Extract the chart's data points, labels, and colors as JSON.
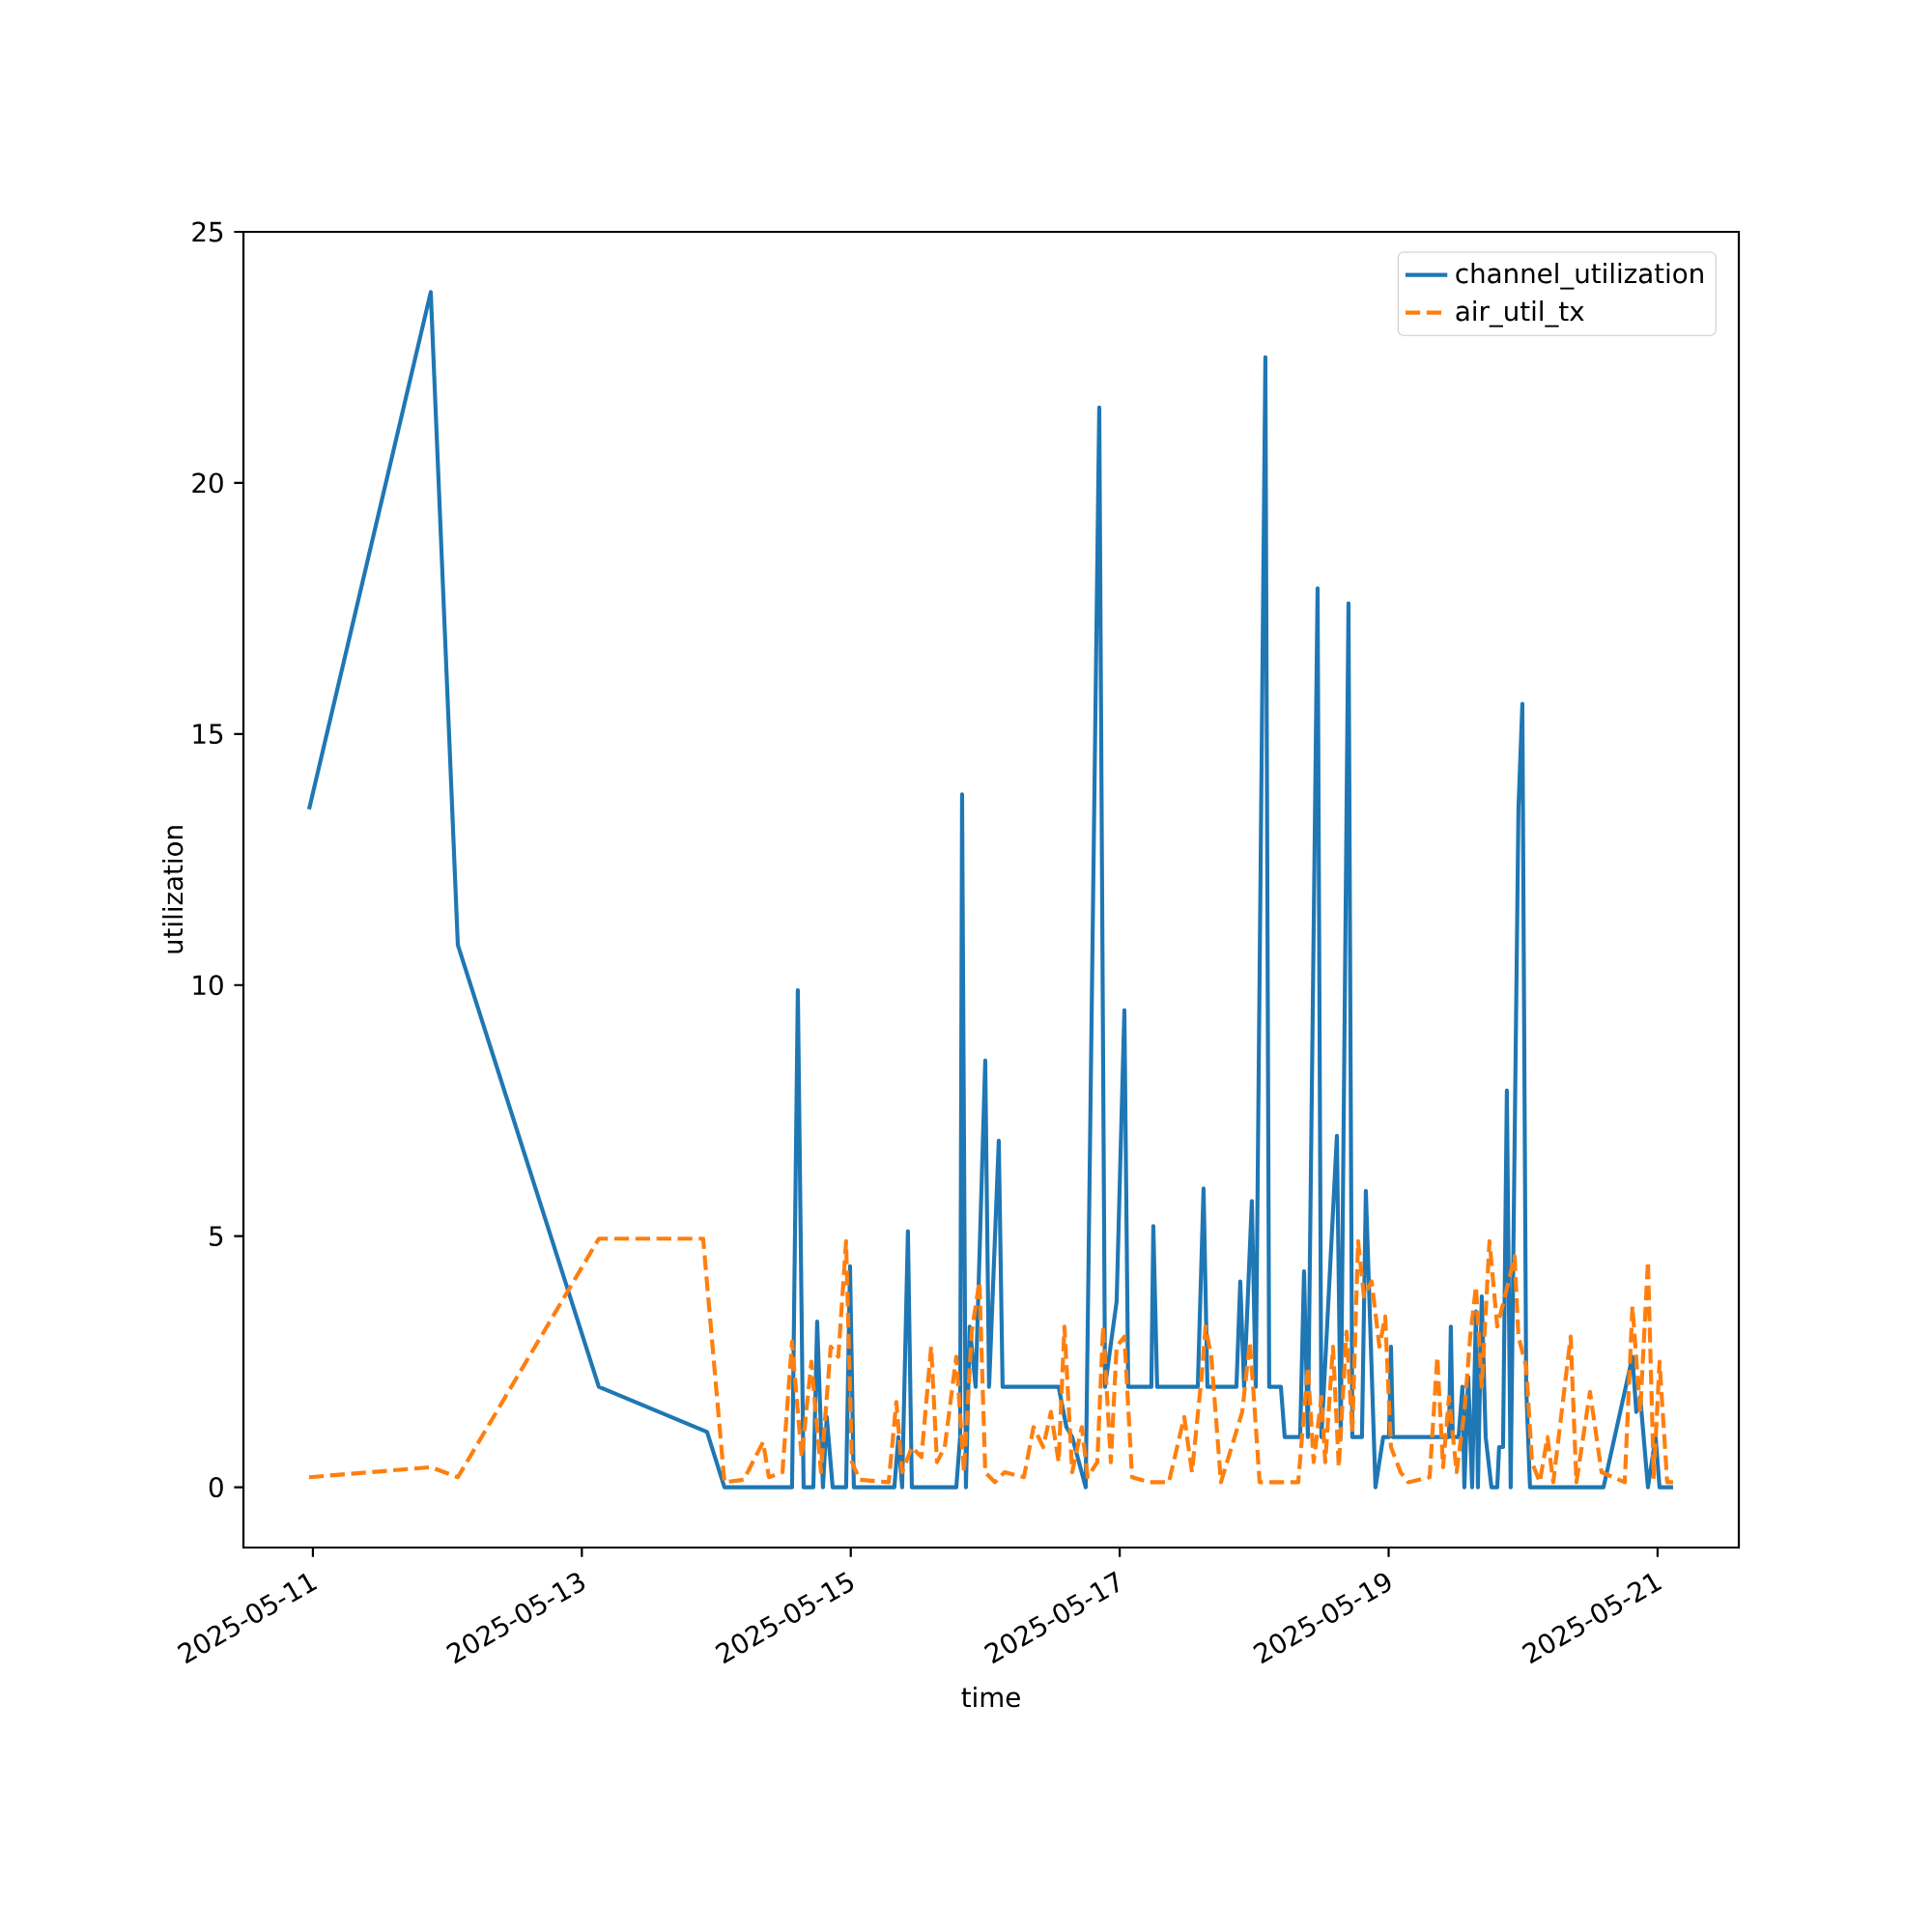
{
  "chart_data": {
    "type": "line",
    "xlabel": "time",
    "ylabel": "utilization",
    "xlim": [
      "2025-05-10T11:36",
      "2025-05-21T14:30"
    ],
    "xticks": [
      "2025-05-11",
      "2025-05-13",
      "2025-05-15",
      "2025-05-17",
      "2025-05-19",
      "2025-05-21"
    ],
    "ylim": [
      -1.2,
      25
    ],
    "yticks": [
      0,
      5,
      10,
      15,
      20,
      25
    ],
    "grid": false,
    "legend": "top right",
    "series": [
      {
        "name": "channel_utilization",
        "color": "#1f77b4",
        "line_style": "solid",
        "x": [
          "2025-05-10T23:19",
          "2025-05-11T21:02",
          "2025-05-12T01:52",
          "2025-05-13T03:02",
          "2025-05-13T22:21",
          "2025-05-14T01:27",
          "2025-05-14T13:31",
          "2025-05-14T14:33",
          "2025-05-14T15:35",
          "2025-05-14T17:19",
          "2025-05-14T18:00",
          "2025-05-14T19:02",
          "2025-05-14T19:43",
          "2025-05-14T20:46",
          "2025-05-14T23:10",
          "2025-05-14T23:52",
          "2025-05-15T00:33",
          "2025-05-15T07:47",
          "2025-05-15T08:29",
          "2025-05-15T09:10",
          "2025-05-15T10:12",
          "2025-05-15T10:54",
          "2025-05-15T18:50",
          "2025-05-15T19:31",
          "2025-05-15T19:52",
          "2025-05-15T20:33",
          "2025-05-15T21:14",
          "2025-05-15T22:17",
          "2025-05-16T00:00",
          "2025-05-16T00:41",
          "2025-05-16T02:25",
          "2025-05-16T03:06",
          "2025-05-16T13:06",
          "2025-05-16T14:29",
          "2025-05-16T15:31",
          "2025-05-16T17:56",
          "2025-05-16T20:21",
          "2025-05-16T21:23",
          "2025-05-16T23:27",
          "2025-05-17T00:50",
          "2025-05-17T01:31",
          "2025-05-17T05:39",
          "2025-05-17T06:00",
          "2025-05-17T06:41",
          "2025-05-17T13:56",
          "2025-05-17T14:58",
          "2025-05-17T15:39",
          "2025-05-17T20:50",
          "2025-05-17T21:31",
          "2025-05-17T22:12",
          "2025-05-17T23:35",
          "2025-05-18T00:17",
          "2025-05-18T02:00",
          "2025-05-18T02:41",
          "2025-05-18T04:46",
          "2025-05-18T05:27",
          "2025-05-18T08:12",
          "2025-05-18T08:54",
          "2025-05-18T09:35",
          "2025-05-18T11:19",
          "2025-05-18T12:00",
          "2025-05-18T14:46",
          "2025-05-18T15:27",
          "2025-05-18T16:50",
          "2025-05-18T17:31",
          "2025-05-18T19:14",
          "2025-05-18T19:56",
          "2025-05-18T21:39",
          "2025-05-18T23:02",
          "2025-05-19T00:04",
          "2025-05-19T00:25",
          "2025-05-19T00:46",
          "2025-05-19T10:46",
          "2025-05-19T11:06",
          "2025-05-19T11:27",
          "2025-05-19T12:29",
          "2025-05-19T13:10",
          "2025-05-19T13:31",
          "2025-05-19T14:12",
          "2025-05-19T14:54",
          "2025-05-19T15:35",
          "2025-05-19T15:56",
          "2025-05-19T16:37",
          "2025-05-19T17:19",
          "2025-05-19T18:21",
          "2025-05-19T19:23",
          "2025-05-19T19:43",
          "2025-05-19T20:25",
          "2025-05-19T21:06",
          "2025-05-19T21:47",
          "2025-05-19T23:10",
          "2025-05-19T23:52",
          "2025-05-20T00:33",
          "2025-05-20T01:14",
          "2025-05-20T14:21",
          "2025-05-20T19:31",
          "2025-05-20T20:12",
          "2025-05-20T20:54",
          "2025-05-20T22:17",
          "2025-05-20T23:39",
          "2025-05-21T00:21",
          "2025-05-21T02:46"
        ],
        "values": [
          13.5,
          23.8,
          10.8,
          2.0,
          1.1,
          0,
          0,
          9.9,
          0,
          0,
          3.3,
          0,
          1.4,
          0,
          0,
          4.4,
          0,
          0,
          1.0,
          0,
          5.1,
          0,
          0,
          1.0,
          13.8,
          0,
          3.2,
          2.0,
          8.5,
          2.0,
          6.9,
          2.0,
          2.0,
          1.2,
          1.0,
          0,
          21.5,
          2.0,
          3.7,
          9.5,
          2.0,
          2.0,
          5.2,
          2.0,
          2.0,
          5.95,
          2.0,
          2.0,
          4.1,
          2.0,
          5.7,
          2.0,
          22.5,
          2.0,
          2.0,
          1.0,
          1.0,
          4.3,
          1.0,
          17.9,
          1.0,
          7.0,
          1.0,
          17.6,
          1.0,
          1.0,
          5.9,
          0,
          1.0,
          1.0,
          2.8,
          1.0,
          1.0,
          3.2,
          1.0,
          1.0,
          2.0,
          0,
          2.2,
          0,
          3.5,
          0,
          3.8,
          1.0,
          0,
          0,
          0.8,
          0.8,
          7.9,
          0,
          13.5,
          15.6,
          2.0,
          0,
          0,
          2.6,
          1.5,
          1.8,
          0,
          1.0,
          0,
          0
        ]
      },
      {
        "name": "air_util_tx",
        "color": "#ff7f0e",
        "line_style": "dashed",
        "x": [
          "2025-05-10T23:19",
          "2025-05-11T21:02",
          "2025-05-12T01:52",
          "2025-05-13T03:02",
          "2025-05-13T21:39",
          "2025-05-14T01:27",
          "2025-05-14T04:54",
          "2025-05-14T08:21",
          "2025-05-14T09:23",
          "2025-05-14T11:48",
          "2025-05-14T13:31",
          "2025-05-14T14:33",
          "2025-05-14T15:14",
          "2025-05-14T16:58",
          "2025-05-14T18:41",
          "2025-05-14T20:25",
          "2025-05-14T21:47",
          "2025-05-14T23:10",
          "2025-05-15T00:12",
          "2025-05-15T01:35",
          "2025-05-15T06:46",
          "2025-05-15T08:08",
          "2025-05-15T09:10",
          "2025-05-15T10:54",
          "2025-05-15T12:37",
          "2025-05-15T14:21",
          "2025-05-15T15:23",
          "2025-05-15T16:46",
          "2025-05-15T18:50",
          "2025-05-15T20:12",
          "2025-05-15T21:35",
          "2025-05-15T22:58",
          "2025-05-16T00:00",
          "2025-05-16T01:43",
          "2025-05-16T03:27",
          "2025-05-16T06:54",
          "2025-05-16T08:37",
          "2025-05-16T10:21",
          "2025-05-16T11:43",
          "2025-05-16T13:06",
          "2025-05-16T14:08",
          "2025-05-16T15:31",
          "2025-05-16T17:14",
          "2025-05-16T18:17",
          "2025-05-16T20:00",
          "2025-05-16T21:02",
          "2025-05-16T22:25",
          "2025-05-16T23:27",
          "2025-05-17T00:50",
          "2025-05-17T02:12",
          "2025-05-17T05:19",
          "2025-05-17T08:46",
          "2025-05-17T11:31",
          "2025-05-17T12:54",
          "2025-05-17T14:37",
          "2025-05-17T15:19",
          "2025-05-17T16:21",
          "2025-05-17T18:04",
          "2025-05-17T21:52",
          "2025-05-17T23:14",
          "2025-05-17T23:56",
          "2025-05-18T00:58",
          "2025-05-18T07:52",
          "2025-05-18T09:35",
          "2025-05-18T10:37",
          "2025-05-18T12:00",
          "2025-05-18T12:41",
          "2025-05-18T14:04",
          "2025-05-18T15:06",
          "2025-05-18T16:29",
          "2025-05-18T17:31",
          "2025-05-18T18:33",
          "2025-05-18T19:35",
          "2025-05-18T20:58",
          "2025-05-18T22:21",
          "2025-05-18T23:23",
          "2025-05-19T00:25",
          "2025-05-19T02:08",
          "2025-05-19T03:31",
          "2025-05-19T07:19",
          "2025-05-19T08:41",
          "2025-05-19T09:43",
          "2025-05-19T10:46",
          "2025-05-19T12:08",
          "2025-05-19T13:31",
          "2025-05-19T14:33",
          "2025-05-19T15:35",
          "2025-05-19T16:37",
          "2025-05-19T18:00",
          "2025-05-19T19:23",
          "2025-05-19T20:46",
          "2025-05-19T22:29",
          "2025-05-19T23:10",
          "2025-05-20T00:33",
          "2025-05-20T01:35",
          "2025-05-20T02:58",
          "2025-05-20T04:21",
          "2025-05-20T05:23",
          "2025-05-20T08:29",
          "2025-05-20T09:31",
          "2025-05-20T11:56",
          "2025-05-20T14:00",
          "2025-05-20T18:08",
          "2025-05-20T19:31",
          "2025-05-20T20:54",
          "2025-05-20T22:17",
          "2025-05-20T23:19",
          "2025-05-21T00:21",
          "2025-05-21T01:43",
          "2025-05-21T02:46"
        ],
        "values": [
          0.2,
          0.4,
          0.2,
          4.95,
          4.95,
          0.1,
          0.15,
          0.9,
          0.2,
          0.3,
          2.9,
          1.5,
          0.6,
          2.5,
          0.3,
          2.8,
          2.6,
          4.9,
          0.5,
          0.15,
          0.1,
          1.7,
          0.3,
          0.8,
          0.6,
          2.8,
          0.5,
          0.8,
          2.6,
          0.3,
          3.1,
          4.1,
          0.3,
          0.1,
          0.3,
          0.2,
          1.2,
          0.8,
          1.5,
          0.5,
          3.2,
          0.3,
          1.2,
          0.2,
          0.5,
          3.2,
          0.5,
          2.8,
          3.0,
          0.2,
          0.1,
          0.1,
          1.4,
          0.3,
          2.2,
          3.2,
          2.6,
          0.1,
          1.5,
          2.9,
          1.8,
          0.1,
          0.1,
          2.4,
          0.5,
          1.8,
          0.5,
          2.8,
          0.4,
          3.1,
          1.1,
          4.9,
          3.8,
          4.1,
          2.8,
          3.4,
          0.8,
          0.3,
          0.1,
          0.2,
          2.6,
          0.4,
          1.8,
          0.3,
          1.5,
          3.0,
          4.0,
          2.0,
          4.9,
          3.2,
          3.8,
          4.6,
          3.0,
          2.4,
          0.5,
          0.1,
          1.0,
          0.1,
          3.0,
          0.1,
          1.9,
          0.3,
          0.1,
          3.6,
          1.5,
          4.5,
          0.2,
          2.5,
          0.1,
          0.1
        ]
      }
    ]
  }
}
